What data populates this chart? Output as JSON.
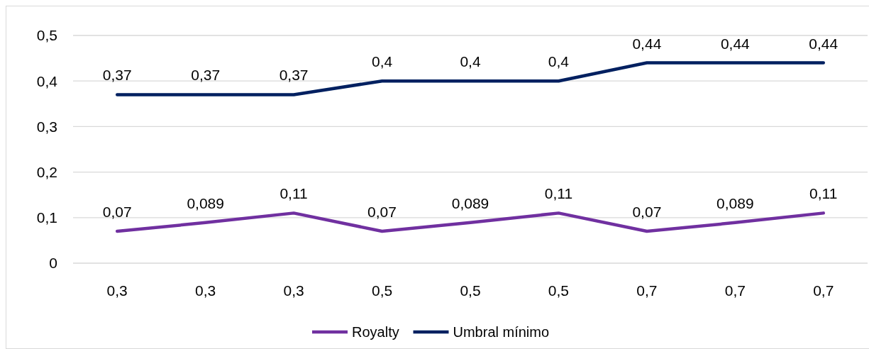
{
  "chart_data": {
    "type": "line",
    "categories": [
      "0,3",
      "0,3",
      "0,3",
      "0,5",
      "0,5",
      "0,5",
      "0,7",
      "0,7",
      "0,7"
    ],
    "series": [
      {
        "name": "Royalty",
        "color": "#7030a0",
        "values": [
          0.07,
          0.089,
          0.11,
          0.07,
          0.089,
          0.11,
          0.07,
          0.089,
          0.11
        ],
        "value_labels": [
          "0,07",
          "0,089",
          "0,11",
          "0,07",
          "0,089",
          "0,11",
          "0,07",
          "0,089",
          "0,11"
        ]
      },
      {
        "name": "Umbral mínimo",
        "color": "#002060",
        "values": [
          0.37,
          0.37,
          0.37,
          0.4,
          0.4,
          0.4,
          0.44,
          0.44,
          0.44
        ],
        "value_labels": [
          "0,37",
          "0,37",
          "0,37",
          "0,4",
          "0,4",
          "0,4",
          "0,44",
          "0,44",
          "0,44"
        ]
      }
    ],
    "ylim": [
      0,
      0.5
    ],
    "yticks": [
      {
        "value": 0,
        "label": "0"
      },
      {
        "value": 0.1,
        "label": "0,1"
      },
      {
        "value": 0.2,
        "label": "0,2"
      },
      {
        "value": 0.3,
        "label": "0,3"
      },
      {
        "value": 0.4,
        "label": "0,4"
      },
      {
        "value": 0.5,
        "label": "0,5"
      }
    ],
    "grid": "y",
    "legend": "bottom",
    "marker": "none",
    "line_style": "solid"
  }
}
